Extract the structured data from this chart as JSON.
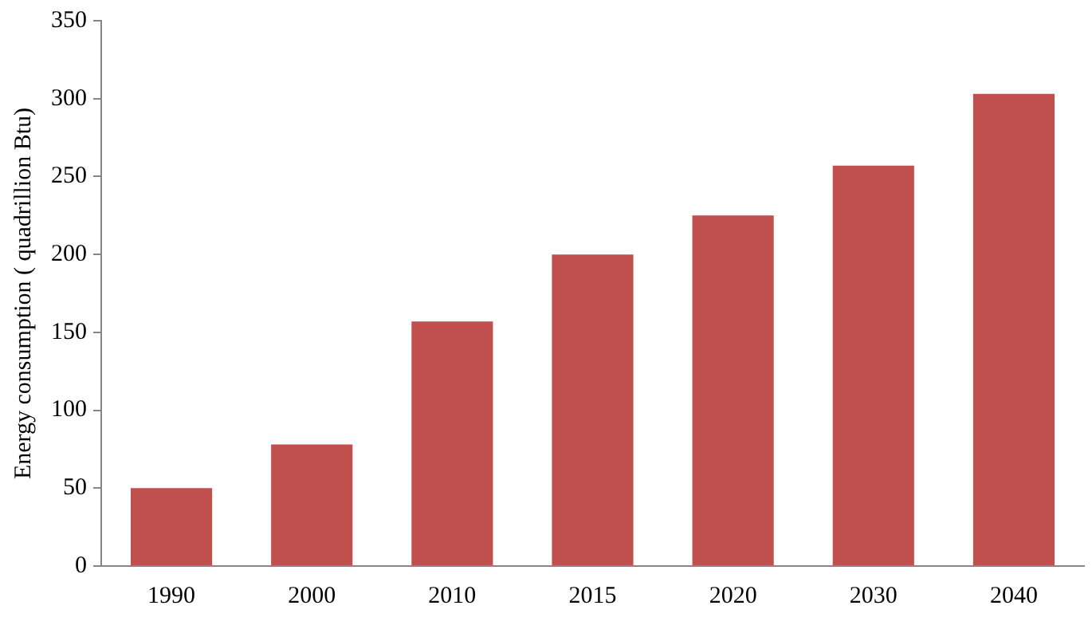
{
  "chart_data": {
    "type": "bar",
    "ylabel": "Energy consumption ( quadrillion Btu)",
    "categories": [
      "1990",
      "2000",
      "2010",
      "2015",
      "2020",
      "2030",
      "2040"
    ],
    "values": [
      50,
      78,
      157,
      200,
      225,
      257,
      303
    ],
    "color": "#c0504d",
    "ylim": [
      0,
      350
    ],
    "yticks": [
      0,
      50,
      100,
      150,
      200,
      250,
      300,
      350
    ],
    "grid": false,
    "legend": false
  }
}
